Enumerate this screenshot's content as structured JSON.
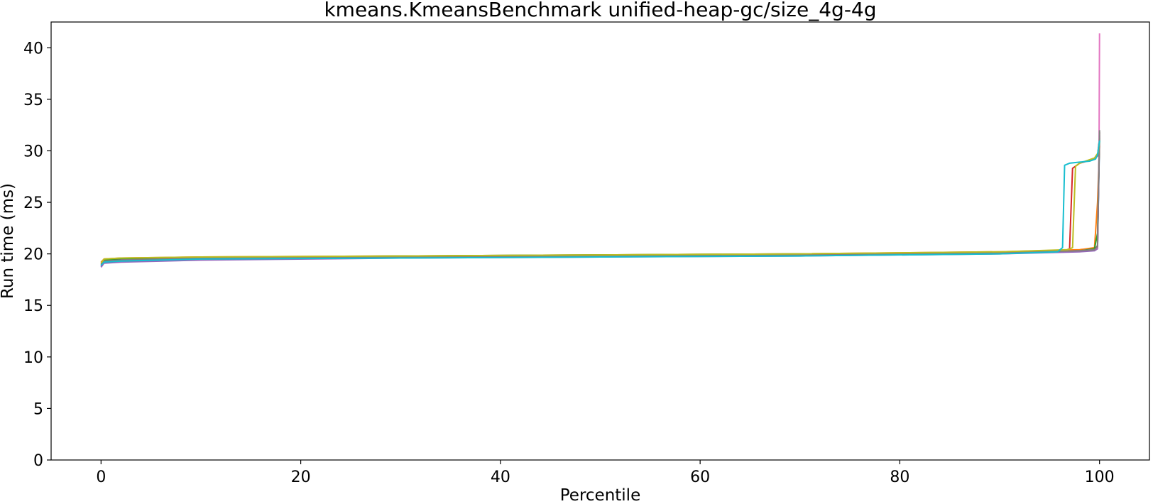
{
  "chart_data": {
    "type": "line",
    "title": "kmeans.KmeansBenchmark unified-heap-gc/size_4g-4g",
    "xlabel": "Percentile",
    "ylabel": "Run time (ms)",
    "xlim": [
      -5,
      105
    ],
    "ylim": [
      0,
      42.5
    ],
    "xticks": [
      0,
      20,
      40,
      60,
      80,
      100
    ],
    "yticks": [
      0,
      5,
      10,
      15,
      20,
      25,
      30,
      35,
      40
    ],
    "grid": false,
    "legend": "none",
    "series": [
      {
        "color": "#1f77b4",
        "x": [
          0,
          0.3,
          2,
          10,
          30,
          50,
          70,
          90,
          98,
          99.5,
          99.8,
          100
        ],
        "y": [
          18.8,
          19.2,
          19.3,
          19.5,
          19.7,
          19.8,
          19.9,
          20.1,
          20.3,
          20.4,
          20.6,
          31.0
        ]
      },
      {
        "color": "#ff7f0e",
        "x": [
          0,
          0.3,
          2,
          10,
          30,
          50,
          70,
          90,
          98,
          99.5,
          99.8,
          100
        ],
        "y": [
          19.2,
          19.5,
          19.6,
          19.7,
          19.8,
          19.9,
          20.0,
          20.2,
          20.4,
          20.6,
          25.0,
          30.5
        ]
      },
      {
        "color": "#2ca02c",
        "x": [
          0,
          0.3,
          2,
          10,
          30,
          50,
          70,
          90,
          98,
          99.5,
          99.8,
          100
        ],
        "y": [
          19.1,
          19.4,
          19.5,
          19.6,
          19.8,
          19.9,
          20.0,
          20.1,
          20.3,
          20.5,
          22.0,
          31.2
        ]
      },
      {
        "color": "#d62728",
        "x": [
          0,
          0.3,
          2,
          10,
          30,
          50,
          70,
          90,
          96.5,
          97.0,
          97.3,
          98,
          99.5,
          99.8,
          100
        ],
        "y": [
          19.0,
          19.3,
          19.4,
          19.6,
          19.7,
          19.8,
          19.9,
          20.1,
          20.3,
          20.5,
          28.3,
          28.8,
          29.2,
          29.5,
          31.3
        ]
      },
      {
        "color": "#9467bd",
        "x": [
          0,
          0.3,
          2,
          10,
          30,
          50,
          70,
          90,
          98,
          99.5,
          99.8,
          100
        ],
        "y": [
          18.7,
          19.1,
          19.2,
          19.4,
          19.6,
          19.7,
          19.8,
          20.0,
          20.2,
          20.3,
          20.5,
          31.5
        ]
      },
      {
        "color": "#8c564b",
        "x": [
          0,
          0.3,
          2,
          10,
          30,
          50,
          70,
          90,
          98,
          99.5,
          99.8,
          100
        ],
        "y": [
          18.9,
          19.3,
          19.4,
          19.5,
          19.7,
          19.8,
          19.9,
          20.1,
          20.3,
          20.4,
          20.8,
          31.8
        ]
      },
      {
        "color": "#e377c2",
        "x": [
          0,
          0.3,
          2,
          10,
          30,
          50,
          70,
          90,
          98,
          99.5,
          99.8,
          99.95,
          100
        ],
        "y": [
          18.9,
          19.2,
          19.4,
          19.5,
          19.7,
          19.8,
          19.9,
          20.1,
          20.3,
          20.4,
          20.6,
          30.0,
          41.4
        ]
      },
      {
        "color": "#7f7f7f",
        "x": [
          0,
          0.3,
          2,
          10,
          30,
          50,
          70,
          90,
          98,
          99.5,
          99.8,
          100
        ],
        "y": [
          18.9,
          19.3,
          19.4,
          19.6,
          19.7,
          19.8,
          19.9,
          20.1,
          20.3,
          20.4,
          20.7,
          32.0
        ]
      },
      {
        "color": "#bcbd22",
        "x": [
          0,
          0.3,
          2,
          10,
          30,
          50,
          70,
          90,
          96.8,
          97.3,
          97.6,
          98,
          99.5,
          99.7,
          99.85,
          100
        ],
        "y": [
          19.1,
          19.5,
          19.6,
          19.7,
          19.8,
          19.9,
          20.0,
          20.2,
          20.4,
          20.6,
          28.5,
          28.8,
          29.3,
          29.6,
          29.8,
          31.0
        ]
      },
      {
        "color": "#17becf",
        "x": [
          0,
          0.3,
          2,
          10,
          30,
          50,
          70,
          90,
          95.8,
          96.3,
          96.5,
          97,
          98,
          99,
          99.6,
          99.8,
          100
        ],
        "y": [
          18.9,
          19.2,
          19.3,
          19.5,
          19.6,
          19.7,
          19.8,
          20.0,
          20.2,
          20.6,
          28.6,
          28.8,
          28.9,
          29.0,
          29.2,
          29.6,
          31.0
        ]
      }
    ]
  }
}
